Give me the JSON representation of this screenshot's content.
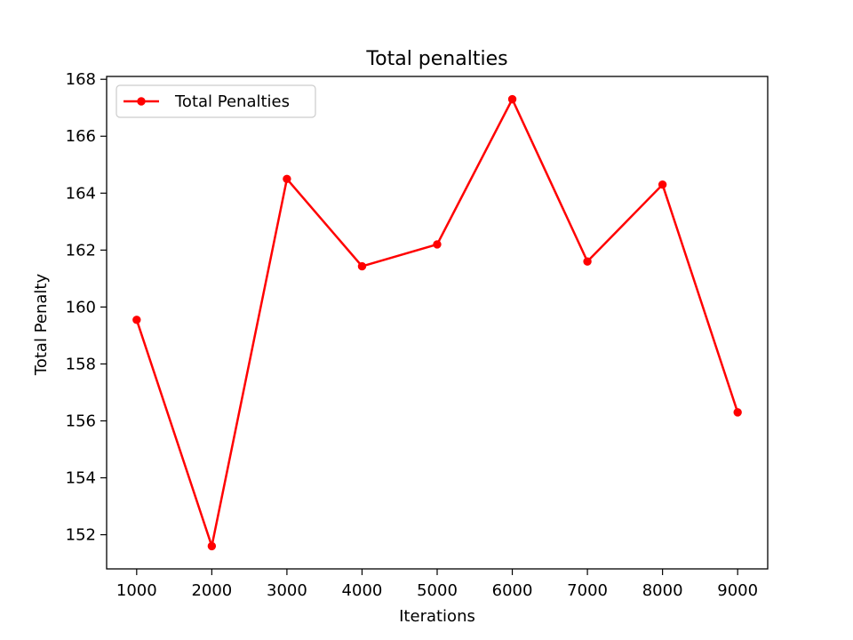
{
  "chart_data": {
    "type": "line",
    "title": "Total penalties",
    "xlabel": "Iterations",
    "ylabel": "Total Penalty",
    "x": [
      1000,
      2000,
      3000,
      4000,
      5000,
      6000,
      7000,
      8000,
      9000
    ],
    "series": [
      {
        "name": "Total Penalties",
        "color": "#ff0000",
        "marker": "circle",
        "values": [
          159.55,
          151.6,
          164.5,
          161.43,
          162.2,
          167.3,
          161.6,
          164.3,
          156.3
        ]
      }
    ],
    "xticks": [
      1000,
      2000,
      3000,
      4000,
      5000,
      6000,
      7000,
      8000,
      9000
    ],
    "yticks": [
      152,
      154,
      156,
      158,
      160,
      162,
      164,
      166,
      168
    ],
    "xlim": [
      600,
      9400
    ],
    "ylim": [
      150.8,
      168.1
    ],
    "grid": false,
    "legend_position": "top-left"
  }
}
